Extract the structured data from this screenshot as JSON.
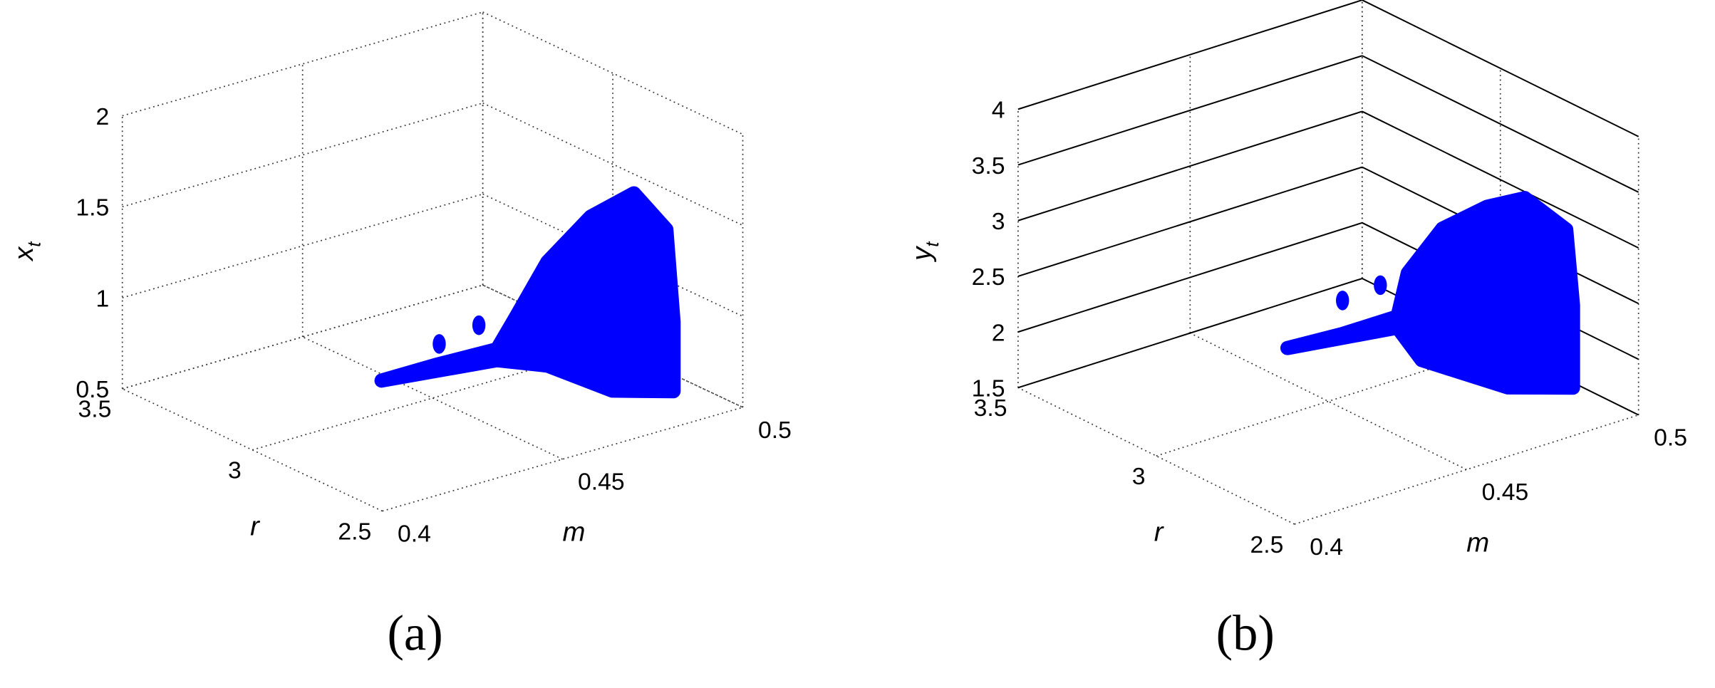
{
  "chart_data": [
    {
      "type": "scatter3d",
      "caption": "(a)",
      "xlabel": "m",
      "ylabel": "r",
      "zlabel": "x",
      "zlabel_sub": "t",
      "xlim": [
        0.4,
        0.5
      ],
      "ylim": [
        2.5,
        3.5
      ],
      "zlim": [
        0.5,
        2
      ],
      "xticks": [
        0.4,
        0.45,
        0.5
      ],
      "yticks": [
        2.5,
        3,
        3.5
      ],
      "zticks": [
        0.5,
        1,
        1.5,
        2
      ],
      "grid_style": "dotted",
      "zgrid_style": "dotted",
      "color": "#0000ff",
      "cloud": {
        "x": [
          0.407,
          0.422,
          0.439,
          0.444,
          0.453,
          0.465,
          0.477,
          0.486,
          0.488,
          0.488,
          0.471,
          0.453,
          0.439
        ],
        "y": [
          2.6,
          2.6,
          2.6,
          2.6,
          2.6,
          2.6,
          2.6,
          2.6,
          2.6,
          2.6,
          2.6,
          2.6,
          2.6
        ],
        "z": [
          1.11,
          1.11,
          1.1,
          1.24,
          1.5,
          1.68,
          1.74,
          1.49,
          0.97,
          0.59,
          0.69,
          0.93,
          1.04
        ]
      },
      "points": {
        "x": [
          0.423,
          0.434
        ],
        "y": [
          2.6,
          2.6
        ],
        "z": [
          1.22,
          1.26
        ]
      }
    },
    {
      "type": "scatter3d",
      "caption": "(b)",
      "xlabel": "m",
      "ylabel": "r",
      "zlabel": "y",
      "zlabel_sub": "t",
      "xlim": [
        0.4,
        0.5
      ],
      "ylim": [
        2.5,
        3.5
      ],
      "zlim": [
        1.5,
        4
      ],
      "xticks": [
        0.4,
        0.45,
        0.5
      ],
      "yticks": [
        2.5,
        3,
        3.5
      ],
      "zticks": [
        1.5,
        2,
        2.5,
        3,
        3.5,
        4
      ],
      "grid_style": "dotted",
      "zgrid_style": "solid",
      "color": "#0000ff",
      "cloud": {
        "x": [
          0.406,
          0.422,
          0.438,
          0.441,
          0.451,
          0.464,
          0.475,
          0.487,
          0.489,
          0.489,
          0.47,
          0.445,
          0.438
        ],
        "y": [
          2.6,
          2.6,
          2.6,
          2.6,
          2.6,
          2.6,
          2.6,
          2.6,
          2.6,
          2.6,
          2.6,
          2.6,
          2.6
        ],
        "z": [
          2.9,
          2.87,
          2.87,
          3.23,
          3.53,
          3.6,
          3.57,
          3.17,
          2.47,
          1.73,
          1.92,
          2.41,
          2.77
        ]
      },
      "points": {
        "x": [
          0.422,
          0.433
        ],
        "y": [
          2.6,
          2.6
        ],
        "z": [
          3.17,
          3.2
        ]
      }
    }
  ]
}
